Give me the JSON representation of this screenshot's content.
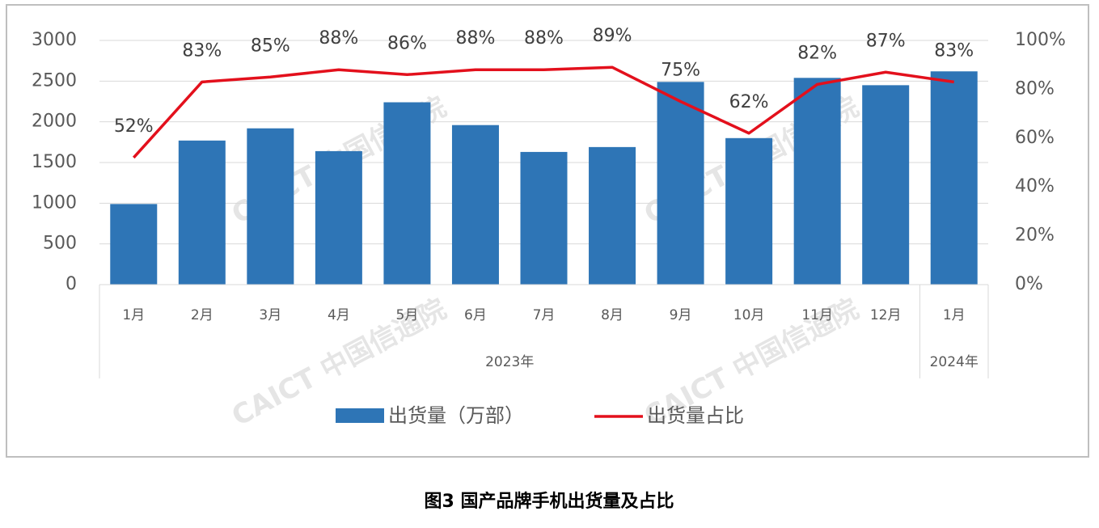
{
  "chart_data": {
    "type": "bar_line",
    "caption": "图3   国产品牌手机出货量及占比",
    "watermark": "CAICT 中国信通院",
    "categories": [
      "1月",
      "2月",
      "3月",
      "4月",
      "5月",
      "6月",
      "7月",
      "8月",
      "9月",
      "10月",
      "11月",
      "12月",
      "1月"
    ],
    "year_groups": [
      {
        "label": "2023年",
        "count": 12
      },
      {
        "label": "2024年",
        "count": 1
      }
    ],
    "series": [
      {
        "name": "出货量（万部）",
        "type": "bar",
        "color": "#2e75b6",
        "values": [
          990,
          1770,
          1920,
          1640,
          2240,
          1960,
          1630,
          1690,
          2490,
          1800,
          2540,
          2450,
          2620
        ]
      },
      {
        "name": "出货量占比",
        "type": "line",
        "axis": "y2",
        "color": "#e3101c",
        "values": [
          52,
          83,
          85,
          88,
          86,
          88,
          88,
          89,
          75,
          62,
          82,
          87,
          83
        ],
        "value_labels": [
          "52%",
          "83%",
          "85%",
          "88%",
          "86%",
          "88%",
          "88%",
          "89%",
          "75%",
          "62%",
          "82%",
          "87%",
          "83%"
        ]
      }
    ],
    "ylim": [
      0,
      3000
    ],
    "yticks": [
      0,
      500,
      1000,
      1500,
      2000,
      2500,
      3000
    ],
    "y2lim": [
      0,
      100
    ],
    "y2ticks": [
      {
        "value": 0,
        "label": "0%"
      },
      {
        "value": 20,
        "label": "20%"
      },
      {
        "value": 40,
        "label": "40%"
      },
      {
        "value": 60,
        "label": "60%"
      },
      {
        "value": 80,
        "label": "80%"
      },
      {
        "value": 100,
        "label": "100%"
      }
    ],
    "grid": true,
    "legend": "bottom"
  }
}
